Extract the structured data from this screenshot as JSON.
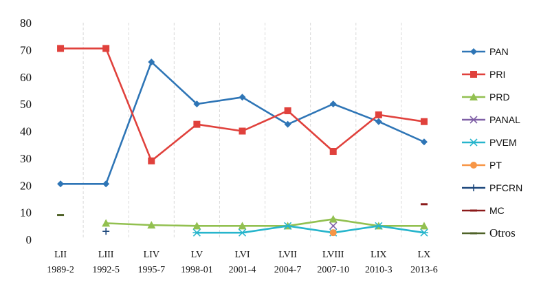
{
  "chart_data": {
    "type": "line",
    "title": "",
    "xlabel": "",
    "ylabel": "",
    "ylim": [
      0,
      80
    ],
    "yticks": [
      "0",
      "10",
      "20",
      "30",
      "40",
      "50",
      "60",
      "70",
      "80"
    ],
    "grid": "vertical dashed",
    "legend_position": "right",
    "categories": [
      {
        "leg": "LII",
        "years": "1989-2"
      },
      {
        "leg": "LIII",
        "years": "1992-5"
      },
      {
        "leg": "LIV",
        "years": "1995-7"
      },
      {
        "leg": "LV",
        "years": "1998-01"
      },
      {
        "leg": "LVI",
        "years": "2001-4"
      },
      {
        "leg": "LVII",
        "years": "2004-7"
      },
      {
        "leg": "LVIII",
        "years": "2007-10"
      },
      {
        "leg": "LIX",
        "years": "2010-3"
      },
      {
        "leg": "LX",
        "years": "2013-6"
      }
    ],
    "series": [
      {
        "name": "PAN",
        "color": "#2E75B6",
        "marker": "diamond",
        "values": [
          20.5,
          20.5,
          65.5,
          50,
          52.5,
          42.5,
          50,
          43.5,
          36
        ]
      },
      {
        "name": "PRI",
        "color": "#E0413C",
        "marker": "square",
        "values": [
          70.5,
          70.5,
          29,
          42.5,
          40,
          47.5,
          32.5,
          46,
          43.5
        ]
      },
      {
        "name": "PRD",
        "color": "#92C050",
        "marker": "triangle",
        "values": [
          null,
          6,
          5.3,
          5,
          5,
          5,
          7.5,
          5,
          5
        ]
      },
      {
        "name": "PANAL",
        "color": "#7F5FA6",
        "marker": "x",
        "values": [
          null,
          null,
          null,
          null,
          null,
          null,
          5,
          null,
          null
        ]
      },
      {
        "name": "PVEM",
        "color": "#27B5CC",
        "marker": "star",
        "values": [
          null,
          null,
          null,
          2.5,
          2.5,
          5,
          2.5,
          5,
          2.5
        ]
      },
      {
        "name": "PT",
        "color": "#F79646",
        "marker": "circle",
        "values": [
          null,
          null,
          null,
          null,
          null,
          null,
          2.5,
          null,
          null
        ]
      },
      {
        "name": "PFCRN",
        "color": "#1F497D",
        "marker": "plus",
        "values": [
          null,
          3,
          null,
          null,
          null,
          null,
          null,
          null,
          null
        ]
      },
      {
        "name": "MC",
        "color": "#8B1A1A",
        "marker": "dash",
        "values": [
          null,
          null,
          null,
          null,
          null,
          null,
          null,
          null,
          13
        ]
      },
      {
        "name": "Otros",
        "color": "#4F6228",
        "marker": "dash",
        "values": [
          9,
          null,
          null,
          null,
          null,
          null,
          null,
          null,
          null
        ]
      }
    ]
  }
}
